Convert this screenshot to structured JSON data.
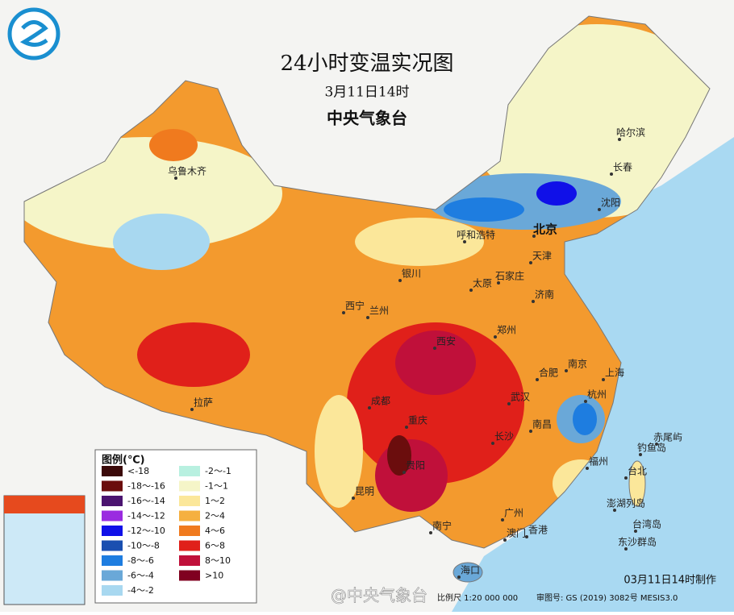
{
  "header": {
    "title": "24小时变温实况图",
    "date": "3月11日14时",
    "org": "中央气象台"
  },
  "legend": {
    "title": "图例(℃)",
    "items": [
      {
        "label": "<-18",
        "color": "#3b0a0a"
      },
      {
        "label": "-18～-16",
        "color": "#6b0d0d"
      },
      {
        "label": "-16～-14",
        "color": "#4b1470"
      },
      {
        "label": "-14～-12",
        "color": "#9a2be0"
      },
      {
        "label": "-12～-10",
        "color": "#1010e8"
      },
      {
        "label": "-10～-8",
        "color": "#1a4fb0"
      },
      {
        "label": "-8～-6",
        "color": "#1e7de0"
      },
      {
        "label": "-6～-4",
        "color": "#6aa8d8"
      },
      {
        "label": "-4～-2",
        "color": "#a8d8f0"
      },
      {
        "label": "-2～-1",
        "color": "#b8f0e0"
      },
      {
        "label": "-1～1",
        "color": "#f5f5c8"
      },
      {
        "label": "1～2",
        "color": "#fbe79a"
      },
      {
        "label": "2～4",
        "color": "#f5b040"
      },
      {
        "label": "4～6",
        "color": "#f07a1e"
      },
      {
        "label": "6～8",
        "color": "#e0201a"
      },
      {
        "label": "8～10",
        "color": "#c0103a"
      },
      {
        "label": ">10",
        "color": "#800020"
      }
    ]
  },
  "cities": [
    "乌鲁木齐",
    "哈尔滨",
    "长春",
    "沈阳",
    "北京",
    "天津",
    "呼和浩特",
    "石家庄",
    "太原",
    "济南",
    "银川",
    "西宁",
    "兰州",
    "西安",
    "郑州",
    "合肥",
    "南京",
    "上海",
    "武汉",
    "杭州",
    "成都",
    "重庆",
    "长沙",
    "南昌",
    "福州",
    "拉萨",
    "贵阳",
    "昆明",
    "南宁",
    "广州",
    "澳门",
    "香港",
    "海口",
    "台北",
    "赤尾屿",
    "钓鱼岛",
    "澎湖列岛",
    "台湾岛",
    "东沙群岛"
  ],
  "footer": {
    "made": "03月11日14时制作",
    "watermark": "@中央气象台",
    "scale": "比例尺 1:20 000 000",
    "approval": "审图号: GS (2019) 3082号 MESIS3.0"
  }
}
